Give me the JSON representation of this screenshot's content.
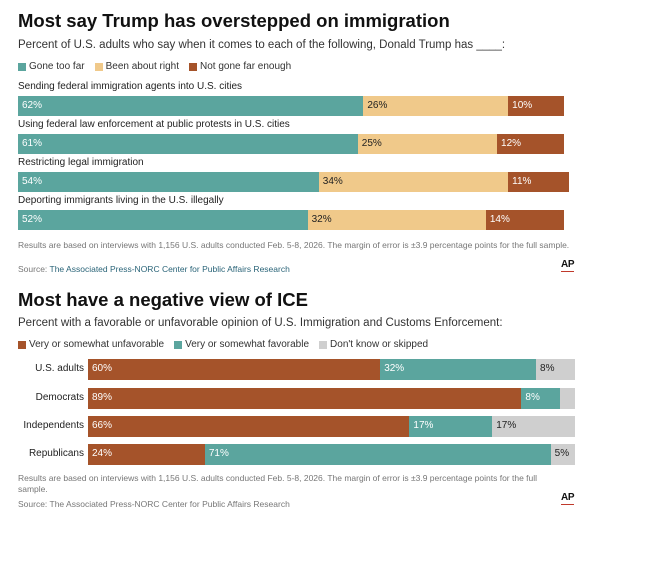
{
  "colors": {
    "teal": "#5ba59e",
    "tan": "#f0c98a",
    "rust": "#a5532a",
    "grey": "#cfcfcf"
  },
  "chart_data": [
    {
      "type": "bar",
      "orientation": "horizontal-stacked",
      "title": "Most say Trump has overstepped on immigration",
      "subtitle": "Percent of U.S. adults who say when it comes to each of the following, Donald Trump has ____:",
      "legend": [
        "Gone too far",
        "Been about right",
        "Not gone far enough"
      ],
      "categories": [
        "Sending federal immigration agents into U.S. cities",
        "Using federal law enforcement at public protests in U.S. cities",
        "Restricting legal immigration",
        "Deporting immigrants living in the U.S. illegally"
      ],
      "series": [
        {
          "name": "Gone too far",
          "values": [
            62,
            61,
            54,
            52
          ]
        },
        {
          "name": "Been about right",
          "values": [
            26,
            25,
            34,
            32
          ]
        },
        {
          "name": "Not gone far enough",
          "values": [
            10,
            12,
            11,
            14
          ]
        }
      ],
      "xlim": [
        0,
        100
      ],
      "footnote": "Results are based on interviews with 1,156 U.S. adults conducted Feb. 5-8, 2026. The margin of error is ±3.9 percentage points for the full sample.",
      "source_prefix": "Source: ",
      "source_name": "The Associated Press-NORC Center for Public Affairs Research",
      "logo": "AP"
    },
    {
      "type": "bar",
      "orientation": "horizontal-stacked",
      "title": "Most have a negative view of ICE",
      "subtitle": "Percent with a favorable or unfavorable opinion of U.S. Immigration and Customs Enforcement:",
      "legend": [
        "Very or somewhat unfavorable",
        "Very or somewhat favorable",
        "Don't know or skipped"
      ],
      "categories": [
        "U.S. adults",
        "Democrats",
        "Independents",
        "Republicans"
      ],
      "series": [
        {
          "name": "Very or somewhat unfavorable",
          "values": [
            60,
            89,
            66,
            24
          ]
        },
        {
          "name": "Very or somewhat favorable",
          "values": [
            32,
            8,
            17,
            71
          ]
        },
        {
          "name": "Don't know or skipped",
          "values": [
            8,
            3,
            17,
            5
          ]
        }
      ],
      "value_labels": [
        [
          "60%",
          "32%",
          "8%"
        ],
        [
          "89%",
          "8%",
          ""
        ],
        [
          "66%",
          "17%",
          "17%"
        ],
        [
          "24%",
          "71%",
          "5%"
        ]
      ],
      "xlim": [
        0,
        100
      ],
      "footnote": "Results are based on interviews with 1,156 U.S. adults conducted Feb. 5-8, 2026. The margin of error is ±3.9 percentage points for the full sample.",
      "source": "Source: The Associated Press-NORC Center for Public Affairs Research",
      "logo": "AP"
    }
  ]
}
